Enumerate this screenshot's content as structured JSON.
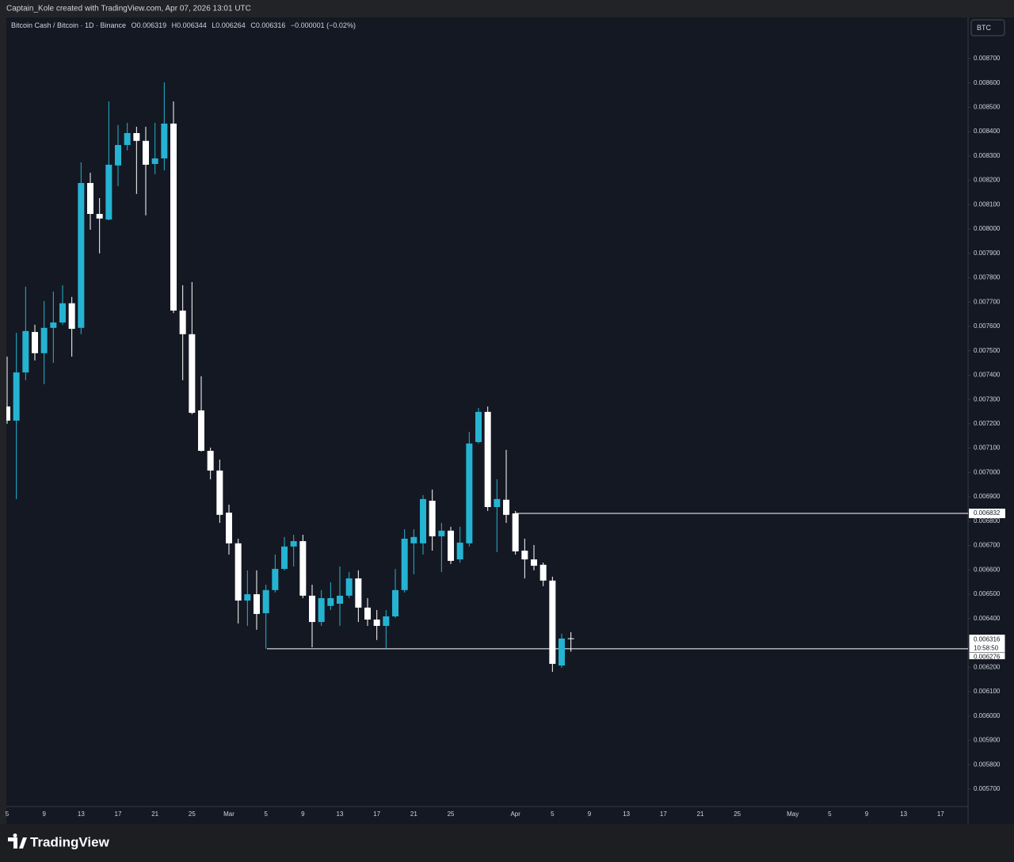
{
  "header": {
    "credit": "Captain_Kole created with TradingView.com, Apr 07, 2026 13:01 UTC"
  },
  "logo": "TradingView",
  "chart_data": {
    "type": "candlestick",
    "legend": {
      "symbol": "Bitcoin Cash / Bitcoin · 1D · Binance",
      "ohlc_labels": [
        "O",
        "H",
        "L",
        "C"
      ],
      "change": "−0.000001 (−0.02%)"
    },
    "currency": "BTC",
    "countdown": "10:58:50",
    "up_color": "#25b3d2",
    "down_color": "#ffffff",
    "grid": false,
    "levels": [
      0.006832,
      0.006276
    ],
    "categories": [
      "5",
      null,
      null,
      null,
      "9",
      null,
      null,
      null,
      "13",
      null,
      null,
      null,
      "17",
      null,
      null,
      null,
      "21",
      null,
      null,
      null,
      "25",
      null,
      null,
      null,
      "Mar",
      null,
      null,
      null,
      "5",
      null,
      null,
      null,
      "9",
      null,
      null,
      null,
      "13",
      null,
      null,
      null,
      "17",
      null,
      null,
      null,
      "21",
      null,
      null,
      null,
      "25",
      null,
      null,
      null,
      null,
      null,
      null,
      "Apr",
      null,
      null,
      null,
      "5",
      null,
      null,
      null,
      "9",
      null,
      null,
      null,
      "13",
      null,
      null,
      null,
      "17",
      null,
      null,
      null,
      "21",
      null,
      null,
      null,
      "25",
      null,
      null,
      null,
      null,
      null,
      "May",
      null,
      null,
      null,
      "5",
      null,
      null,
      null,
      "9",
      null,
      null,
      null,
      "13",
      null,
      null,
      null,
      "17",
      null,
      null
    ],
    "open": [
      0.007271,
      0.007213,
      0.007411,
      0.007577,
      0.00749,
      0.007594,
      0.007616,
      0.007695,
      0.007594,
      0.008189,
      0.008062,
      0.008039,
      0.008261,
      0.008345,
      0.008394,
      0.008362,
      0.008267,
      0.00829,
      0.008433,
      0.007665,
      0.007568,
      0.007255,
      0.007089,
      0.007008,
      0.006835,
      0.006709,
      0.006474,
      0.0065,
      0.006422,
      0.006517,
      0.006604,
      0.006696,
      0.006718,
      0.006494,
      0.006386,
      0.006452,
      0.006461,
      0.006494,
      0.006565,
      0.006445,
      0.006396,
      0.00637,
      0.006409,
      0.006517,
      0.006709,
      0.006709,
      0.006884,
      0.006738,
      0.006761,
      0.006643,
      0.006709,
      0.007125,
      0.007249,
      0.006858,
      0.006888,
      0.006832,
      0.006679,
      0.006643,
      0.006621,
      0.006556,
      0.006207,
      0.006319,
      null,
      null,
      null,
      null,
      null,
      null,
      null,
      null,
      null,
      null,
      null,
      null,
      null,
      null,
      null,
      null,
      null,
      null,
      null,
      null,
      null,
      null,
      null,
      null,
      null,
      null,
      null,
      null,
      null,
      null,
      null,
      null,
      null,
      null,
      null,
      null,
      null,
      null,
      null,
      null,
      null,
      null
    ],
    "high": [
      0.007476,
      0.007574,
      0.007763,
      0.007607,
      0.007704,
      0.007743,
      0.007769,
      0.007721,
      0.008274,
      0.008231,
      0.008127,
      0.008524,
      0.008427,
      0.008436,
      0.00842,
      0.00842,
      0.008436,
      0.008602,
      0.008524,
      0.007769,
      0.007782,
      0.007395,
      0.007102,
      0.007053,
      0.006868,
      0.006728,
      0.006598,
      0.006598,
      0.006539,
      0.006663,
      0.006735,
      0.006744,
      0.006744,
      0.006539,
      0.006517,
      0.006549,
      0.006614,
      0.006591,
      0.006598,
      0.006484,
      0.006435,
      0.006435,
      0.006604,
      0.006767,
      0.006767,
      0.006907,
      0.00693,
      0.006793,
      0.006777,
      0.006777,
      0.007167,
      0.007265,
      0.007271,
      0.006972,
      0.007093,
      0.006842,
      0.006728,
      0.006702,
      0.00663,
      0.006572,
      0.006338,
      0.006344,
      null,
      null,
      null,
      null,
      null,
      null,
      null,
      null,
      null,
      null,
      null,
      null,
      null,
      null,
      null,
      null,
      null,
      null,
      null,
      null,
      null,
      null,
      null,
      null,
      null,
      null,
      null,
      null,
      null,
      null,
      null,
      null,
      null,
      null,
      null,
      null,
      null,
      null,
      null,
      null,
      null,
      null
    ],
    "low": [
      0.0072,
      0.006891,
      0.007379,
      0.00746,
      0.007363,
      0.00745,
      0.007607,
      0.007476,
      0.007568,
      0.007997,
      0.0079,
      0.008036,
      0.008176,
      0.008323,
      0.008144,
      0.008056,
      0.008225,
      0.008241,
      0.007655,
      0.007379,
      0.007239,
      0.007086,
      0.006972,
      0.006793,
      0.006663,
      0.00638,
      0.00637,
      0.006354,
      0.006276,
      0.006507,
      0.006598,
      0.006614,
      0.006484,
      0.006282,
      0.00637,
      0.006435,
      0.00637,
      0.006484,
      0.006386,
      0.00637,
      0.006312,
      0.006276,
      0.006403,
      0.006507,
      0.006582,
      0.006663,
      0.006679,
      0.006591,
      0.006624,
      0.00663,
      0.006696,
      0.007119,
      0.006842,
      0.006673,
      0.006793,
      0.006663,
      0.006565,
      0.006598,
      0.006533,
      0.006181,
      0.006198,
      0.006264,
      null,
      null,
      null,
      null,
      null,
      null,
      null,
      null,
      null,
      null,
      null,
      null,
      null,
      null,
      null,
      null,
      null,
      null,
      null,
      null,
      null,
      null,
      null,
      null,
      null,
      null,
      null,
      null,
      null,
      null,
      null,
      null,
      null,
      null,
      null,
      null,
      null,
      null,
      null,
      null,
      null,
      null
    ],
    "close": [
      0.007213,
      0.007411,
      0.007581,
      0.00749,
      0.007594,
      0.007616,
      0.007695,
      0.00759,
      0.008189,
      0.008062,
      0.008043,
      0.008264,
      0.008345,
      0.008394,
      0.008362,
      0.008264,
      0.00829,
      0.008433,
      0.007665,
      0.007568,
      0.007245,
      0.007089,
      0.007008,
      0.006826,
      0.006709,
      0.006474,
      0.0065,
      0.006419,
      0.006517,
      0.006604,
      0.006696,
      0.006718,
      0.006494,
      0.006386,
      0.006484,
      0.006484,
      0.006494,
      0.006565,
      0.006445,
      0.006396,
      0.00637,
      0.006409,
      0.006517,
      0.006728,
      0.006735,
      0.006891,
      0.006738,
      0.006761,
      0.006637,
      0.006712,
      0.007119,
      0.007249,
      0.006858,
      0.006891,
      0.006826,
      0.006676,
      0.006643,
      0.006617,
      0.006556,
      0.006214,
      0.006318,
      0.006316,
      null,
      null,
      null,
      null,
      null,
      null,
      null,
      null,
      null,
      null,
      null,
      null,
      null,
      null,
      null,
      null,
      null,
      null,
      null,
      null,
      null,
      null,
      null,
      null,
      null,
      null,
      null,
      null,
      null,
      null,
      null,
      null,
      null,
      null,
      null,
      null,
      null,
      null,
      null,
      null,
      null,
      null
    ],
    "ylim": [
      0.005628,
      0.008869
    ],
    "yticks": [
      {
        "value": 0.0057,
        "label": "0.005700"
      },
      {
        "value": 0.0058,
        "label": "0.005800"
      },
      {
        "value": 0.0059,
        "label": "0.005900"
      },
      {
        "value": 0.006,
        "label": "0.006000"
      },
      {
        "value": 0.0061,
        "label": "0.006100"
      },
      {
        "value": 0.0062,
        "label": "0.006200"
      },
      {
        "value": 0.0063,
        "label": "0.006300"
      },
      {
        "value": 0.0064,
        "label": "0.006400"
      },
      {
        "value": 0.0065,
        "label": "0.006500"
      },
      {
        "value": 0.0066,
        "label": "0.006600"
      },
      {
        "value": 0.0067,
        "label": "0.006700"
      },
      {
        "value": 0.0068,
        "label": "0.006800"
      },
      {
        "value": 0.0069,
        "label": "0.006900"
      },
      {
        "value": 0.007,
        "label": "0.007000"
      },
      {
        "value": 0.0071,
        "label": "0.007100"
      },
      {
        "value": 0.0072,
        "label": "0.007200"
      },
      {
        "value": 0.0073,
        "label": "0.007300"
      },
      {
        "value": 0.0074,
        "label": "0.007400"
      },
      {
        "value": 0.0075,
        "label": "0.007500"
      },
      {
        "value": 0.0076,
        "label": "0.007600"
      },
      {
        "value": 0.0077,
        "label": "0.007700"
      },
      {
        "value": 0.0078,
        "label": "0.007800"
      },
      {
        "value": 0.0079,
        "label": "0.007900"
      },
      {
        "value": 0.008,
        "label": "0.008000"
      },
      {
        "value": 0.0081,
        "label": "0.008100"
      },
      {
        "value": 0.0082,
        "label": "0.008200"
      },
      {
        "value": 0.0083,
        "label": "0.008300"
      },
      {
        "value": 0.0084,
        "label": "0.008400"
      },
      {
        "value": 0.0085,
        "label": "0.008500"
      },
      {
        "value": 0.0086,
        "label": "0.008600"
      },
      {
        "value": 0.0087,
        "label": "0.008700"
      }
    ]
  }
}
